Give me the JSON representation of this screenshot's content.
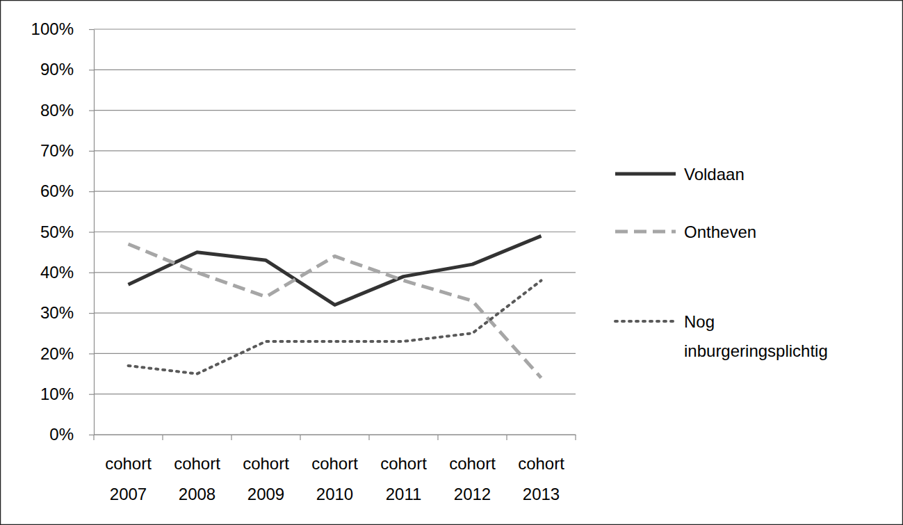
{
  "chart_data": {
    "type": "line",
    "categories": [
      "cohort 2007",
      "cohort 2008",
      "cohort 2009",
      "cohort 2010",
      "cohort 2011",
      "cohort 2012",
      "cohort 2013"
    ],
    "series": [
      {
        "name": "Voldaan",
        "color": "#333333",
        "line_style": "solid",
        "values": [
          37,
          45,
          43,
          32,
          39,
          42,
          49
        ]
      },
      {
        "name": "Ontheven",
        "color": "#a6a6a6",
        "line_style": "dashed",
        "values": [
          47,
          40,
          34,
          44,
          38,
          33,
          14
        ]
      },
      {
        "name": "Nog inburgeringsplichtig",
        "color": "#595959",
        "line_style": "dotted",
        "values": [
          17,
          15,
          23,
          23,
          23,
          25,
          38
        ]
      }
    ],
    "ylim": [
      0,
      100
    ],
    "yticks": [
      {
        "value": 0,
        "label": "0%"
      },
      {
        "value": 10,
        "label": "10%"
      },
      {
        "value": 20,
        "label": "20%"
      },
      {
        "value": 30,
        "label": "30%"
      },
      {
        "value": 40,
        "label": "40%"
      },
      {
        "value": 50,
        "label": "50%"
      },
      {
        "value": 60,
        "label": "60%"
      },
      {
        "value": 70,
        "label": "70%"
      },
      {
        "value": 80,
        "label": "80%"
      },
      {
        "value": 90,
        "label": "90%"
      },
      {
        "value": 100,
        "label": "100%"
      }
    ],
    "grid": true,
    "legend": "right"
  }
}
